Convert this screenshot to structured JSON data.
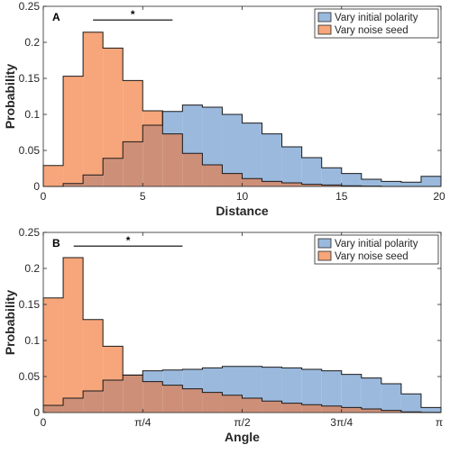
{
  "chart_data": [
    {
      "type": "histogram",
      "panel_label": "A",
      "xlabel": "Distance",
      "ylabel": "Probability",
      "xlim": [
        0,
        20
      ],
      "ylim": [
        0,
        0.25
      ],
      "xticks": [
        0,
        5,
        10,
        15,
        20
      ],
      "xtick_labels": [
        "0",
        "5",
        "10",
        "15",
        "20"
      ],
      "yticks": [
        0,
        0.05,
        0.1,
        0.15,
        0.2,
        0.25
      ],
      "ytick_labels": [
        "0",
        "0.05",
        "0.1",
        "0.15",
        "0.2",
        "0.25"
      ],
      "bin_edges": [
        0,
        1,
        2,
        3,
        4,
        5,
        6,
        7,
        8,
        9,
        10,
        11,
        12,
        13,
        14,
        15,
        16,
        17,
        18,
        19,
        20
      ],
      "series": [
        {
          "name": "Vary initial polarity",
          "color": "#9bb9dd",
          "values": [
            0.0,
            0.004,
            0.016,
            0.039,
            0.062,
            0.085,
            0.104,
            0.113,
            0.11,
            0.1,
            0.088,
            0.073,
            0.055,
            0.04,
            0.026,
            0.018,
            0.01,
            0.007,
            0.006,
            0.014
          ]
        },
        {
          "name": "Vary noise seed",
          "color": "#f6a67a",
          "values": [
            0.029,
            0.153,
            0.214,
            0.192,
            0.147,
            0.105,
            0.073,
            0.046,
            0.03,
            0.018,
            0.011,
            0.007,
            0.005,
            0.003,
            0.002,
            0.001,
            0.0005,
            0.0,
            0.0,
            0.0
          ]
        }
      ],
      "significance": {
        "from": 2.5,
        "to": 6.5,
        "y": 0.231,
        "label": "*"
      },
      "legend": "top-right"
    },
    {
      "type": "histogram",
      "panel_label": "B",
      "xlabel": "Angle",
      "ylabel": "Probability",
      "xlim": [
        0,
        3.1416
      ],
      "ylim": [
        0,
        0.25
      ],
      "xticks": [
        0,
        0.7854,
        1.5708,
        2.3562,
        3.1416
      ],
      "xtick_labels": [
        "0",
        "π/4",
        "π/2",
        "3π/4",
        "π"
      ],
      "yticks": [
        0,
        0.05,
        0.1,
        0.15,
        0.2,
        0.25
      ],
      "ytick_labels": [
        "0",
        "0.05",
        "0.1",
        "0.15",
        "0.2",
        "0.25"
      ],
      "bin_count": 20,
      "series": [
        {
          "name": "Vary initial polarity",
          "color": "#9bb9dd",
          "values": [
            0.01,
            0.02,
            0.03,
            0.045,
            0.052,
            0.058,
            0.059,
            0.06,
            0.062,
            0.064,
            0.064,
            0.063,
            0.062,
            0.06,
            0.058,
            0.053,
            0.048,
            0.04,
            0.026,
            0.007
          ]
        },
        {
          "name": "Vary noise seed",
          "color": "#f6a67a",
          "values": [
            0.159,
            0.215,
            0.129,
            0.092,
            0.052,
            0.043,
            0.038,
            0.033,
            0.028,
            0.024,
            0.02,
            0.016,
            0.013,
            0.011,
            0.009,
            0.007,
            0.005,
            0.003,
            0.001,
            0.0003
          ]
        }
      ],
      "significance": {
        "from": 0.24,
        "to": 1.1,
        "y": 0.231,
        "label": "*"
      },
      "legend": "top-right"
    }
  ]
}
